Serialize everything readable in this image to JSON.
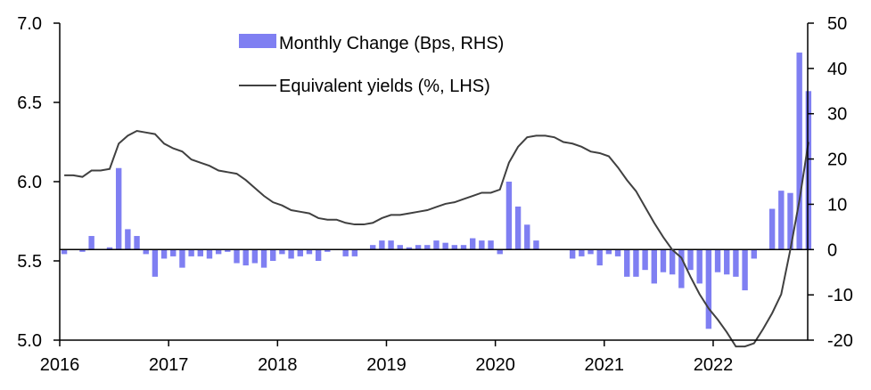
{
  "chart_data": {
    "type": "bar+line",
    "legend": {
      "placement": "top-center",
      "entries": [
        {
          "label": "Monthly Change (Bps, RHS)",
          "kind": "bar",
          "color": "#7f7ff2"
        },
        {
          "label": "Equivalent yields (%, LHS)",
          "kind": "line",
          "color": "#404040"
        }
      ]
    },
    "x_axis": {
      "ticks": [
        "2016",
        "2017",
        "2018",
        "2019",
        "2020",
        "2021",
        "2022"
      ],
      "start": "2016-01",
      "end": "2022-12"
    },
    "y_left": {
      "min": 5.0,
      "max": 7.0,
      "ticks": [
        "5.0",
        "5.5",
        "6.0",
        "6.5",
        "7.0"
      ]
    },
    "y_right": {
      "min": -20,
      "max": 50,
      "ticks": [
        "-20",
        "-10",
        "0",
        "10",
        "20",
        "30",
        "40",
        "50"
      ]
    },
    "grid": false,
    "series": [
      {
        "name": "Monthly Change (Bps, RHS)",
        "axis": "right",
        "type": "bar",
        "color": "#7f7ff2",
        "x": [
          "2016-01",
          "2016-02",
          "2016-03",
          "2016-04",
          "2016-05",
          "2016-06",
          "2016-07",
          "2016-08",
          "2016-09",
          "2016-10",
          "2016-11",
          "2016-12",
          "2017-01",
          "2017-02",
          "2017-03",
          "2017-04",
          "2017-05",
          "2017-06",
          "2017-07",
          "2017-08",
          "2017-09",
          "2017-10",
          "2017-11",
          "2017-12",
          "2018-01",
          "2018-02",
          "2018-03",
          "2018-04",
          "2018-05",
          "2018-06",
          "2018-07",
          "2018-08",
          "2018-09",
          "2018-10",
          "2018-11",
          "2018-12",
          "2019-01",
          "2019-02",
          "2019-03",
          "2019-04",
          "2019-05",
          "2019-06",
          "2019-07",
          "2019-08",
          "2019-09",
          "2019-10",
          "2019-11",
          "2019-12",
          "2020-01",
          "2020-02",
          "2020-03",
          "2020-04",
          "2020-05",
          "2020-06",
          "2020-07",
          "2020-08",
          "2020-09",
          "2020-10",
          "2020-11",
          "2020-12",
          "2021-01",
          "2021-02",
          "2021-03",
          "2021-04",
          "2021-05",
          "2021-06",
          "2021-07",
          "2021-08",
          "2021-09",
          "2021-10",
          "2021-11",
          "2021-12",
          "2022-01",
          "2022-02",
          "2022-03",
          "2022-04",
          "2022-05",
          "2022-06",
          "2022-07",
          "2022-08",
          "2022-09",
          "2022-10",
          "2022-11"
        ],
        "values": [
          -1,
          0,
          -0.5,
          3,
          0,
          0.5,
          18,
          4.5,
          3,
          -1,
          -6,
          -2,
          -1.5,
          -4,
          -1.5,
          -1.5,
          -2,
          -1,
          -0.5,
          -3,
          -3.5,
          -3,
          -4,
          -2.5,
          -1,
          -2,
          -1.5,
          -1,
          -2.5,
          -0.5,
          0,
          -1.5,
          -1.5,
          0,
          1,
          2,
          2,
          1,
          0.5,
          1,
          1,
          2,
          1.5,
          1,
          1,
          2.5,
          2,
          2,
          -1,
          15,
          9.5,
          5.5,
          2,
          0,
          0,
          0,
          -2,
          -1.5,
          -1,
          -3.5,
          -1,
          -1.5,
          -6,
          -6,
          -4.5,
          -7.5,
          -5,
          -5.5,
          -8.5,
          -4.5,
          -7.5,
          -17.5,
          -5,
          -5.5,
          -6,
          -9,
          -2,
          0,
          9,
          13,
          12.5,
          43.5,
          35
        ]
      },
      {
        "name": "Equivalent yields (%, LHS)",
        "axis": "left",
        "type": "line",
        "color": "#404040",
        "x": [
          "2016-01",
          "2016-02",
          "2016-03",
          "2016-04",
          "2016-05",
          "2016-06",
          "2016-07",
          "2016-08",
          "2016-09",
          "2016-10",
          "2016-11",
          "2016-12",
          "2017-01",
          "2017-02",
          "2017-03",
          "2017-04",
          "2017-05",
          "2017-06",
          "2017-07",
          "2017-08",
          "2017-09",
          "2017-10",
          "2017-11",
          "2017-12",
          "2018-01",
          "2018-02",
          "2018-03",
          "2018-04",
          "2018-05",
          "2018-06",
          "2018-07",
          "2018-08",
          "2018-09",
          "2018-10",
          "2018-11",
          "2018-12",
          "2019-01",
          "2019-02",
          "2019-03",
          "2019-04",
          "2019-05",
          "2019-06",
          "2019-07",
          "2019-08",
          "2019-09",
          "2019-10",
          "2019-11",
          "2019-12",
          "2020-01",
          "2020-02",
          "2020-03",
          "2020-04",
          "2020-05",
          "2020-06",
          "2020-07",
          "2020-08",
          "2020-09",
          "2020-10",
          "2020-11",
          "2020-12",
          "2021-01",
          "2021-02",
          "2021-03",
          "2021-04",
          "2021-05",
          "2021-06",
          "2021-07",
          "2021-08",
          "2021-09",
          "2021-10",
          "2021-11",
          "2021-12",
          "2022-01",
          "2022-02",
          "2022-03",
          "2022-04",
          "2022-05",
          "2022-06",
          "2022-07",
          "2022-08",
          "2022-09",
          "2022-10",
          "2022-11"
        ],
        "values": [
          6.04,
          6.04,
          6.03,
          6.07,
          6.07,
          6.08,
          6.24,
          6.29,
          6.32,
          6.31,
          6.3,
          6.24,
          6.21,
          6.19,
          6.14,
          6.12,
          6.1,
          6.07,
          6.06,
          6.05,
          6.01,
          5.96,
          5.91,
          5.87,
          5.85,
          5.82,
          5.81,
          5.8,
          5.77,
          5.76,
          5.76,
          5.74,
          5.73,
          5.73,
          5.74,
          5.77,
          5.79,
          5.79,
          5.8,
          5.81,
          5.82,
          5.84,
          5.86,
          5.87,
          5.89,
          5.91,
          5.93,
          5.93,
          5.95,
          6.12,
          6.22,
          6.28,
          6.29,
          6.29,
          6.28,
          6.25,
          6.24,
          6.22,
          6.19,
          6.18,
          6.16,
          6.09,
          6.01,
          5.94,
          5.84,
          5.74,
          5.65,
          5.57,
          5.52,
          5.4,
          5.29,
          5.2,
          5.13,
          5.05,
          4.96,
          4.96,
          4.98,
          5.07,
          5.17,
          5.29,
          5.57,
          5.88,
          6.25
        ]
      }
    ]
  }
}
